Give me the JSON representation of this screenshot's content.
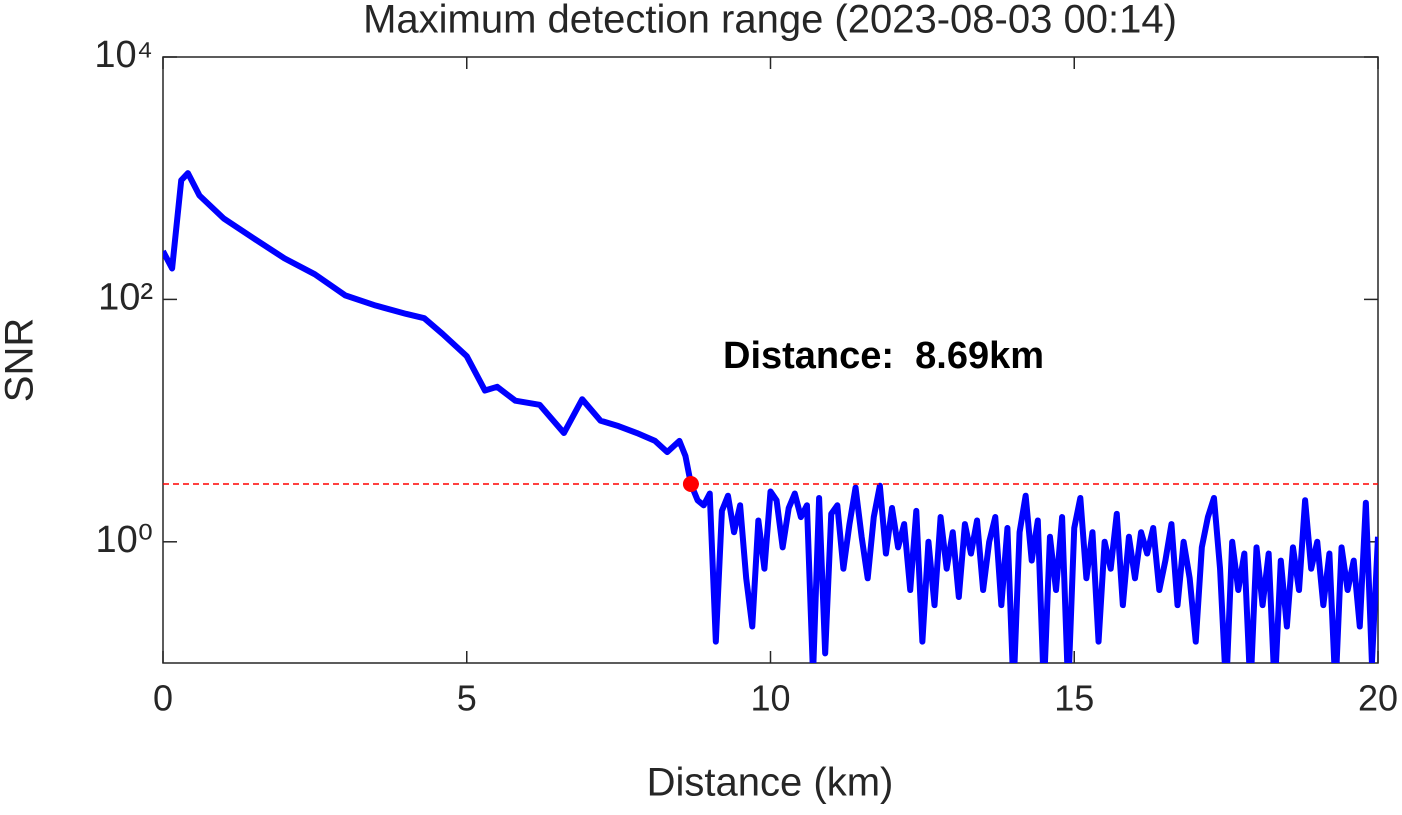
{
  "chart_data": {
    "type": "line",
    "title": "Maximum detection range (2023-08-03 00:14)",
    "x_label": "Distance (km)",
    "y_label": "SNR",
    "xlim": [
      0,
      20
    ],
    "xticks": [
      0,
      5,
      10,
      15,
      20
    ],
    "ylim": [
      0.1,
      10000
    ],
    "y_scale": "log",
    "yticks": [
      {
        "value": 1,
        "label": "10⁰"
      },
      {
        "value": 100,
        "label": "10²"
      },
      {
        "value": 10000,
        "label": "10⁴"
      }
    ],
    "x": [
      0,
      0.15,
      0.3,
      0.41,
      0.6,
      1,
      1.5,
      2,
      2.5,
      3,
      3.5,
      4,
      4.3,
      4.6,
      5,
      5.3,
      5.5,
      5.8,
      6.2,
      6.6,
      6.9,
      7.2,
      7.5,
      7.8,
      8.1,
      8.3,
      8.5,
      8.6,
      8.69,
      8.8,
      8.9,
      9.0,
      9.1,
      9.2,
      9.3,
      9.4,
      9.5,
      9.6,
      9.7,
      9.8,
      9.9,
      10.0,
      10.1,
      10.2,
      10.3,
      10.4,
      10.5,
      10.6,
      10.7,
      10.8,
      10.9,
      11.0,
      11.1,
      11.2,
      11.3,
      11.4,
      11.5,
      11.6,
      11.7,
      11.8,
      11.9,
      12.0,
      12.1,
      12.2,
      12.3,
      12.4,
      12.5,
      12.6,
      12.7,
      12.8,
      12.9,
      13.0,
      13.1,
      13.2,
      13.3,
      13.4,
      13.5,
      13.6,
      13.7,
      13.8,
      13.9,
      14.0,
      14.1,
      14.2,
      14.3,
      14.4,
      14.5,
      14.6,
      14.7,
      14.8,
      14.9,
      15.0,
      15.1,
      15.2,
      15.3,
      15.4,
      15.5,
      15.6,
      15.7,
      15.8,
      15.9,
      16.0,
      16.1,
      16.2,
      16.3,
      16.4,
      16.5,
      16.6,
      16.7,
      16.8,
      16.9,
      17.0,
      17.1,
      17.2,
      17.3,
      17.4,
      17.5,
      17.6,
      17.7,
      17.8,
      17.9,
      18.0,
      18.1,
      18.2,
      18.3,
      18.4,
      18.5,
      18.6,
      18.7,
      18.8,
      18.9,
      19.0,
      19.1,
      19.2,
      19.3,
      19.4,
      19.5,
      19.6,
      19.7,
      19.8,
      19.9,
      20.0
    ],
    "series": [
      {
        "color": "#0000ff",
        "values": [
          250,
          180,
          960,
          1100,
          720,
          465,
          317,
          218,
          161,
          108,
          89,
          76,
          70,
          52,
          34,
          17.7,
          19,
          14.6,
          13.5,
          7.9,
          15,
          10,
          9,
          7.9,
          6.8,
          5.5,
          6.8,
          5.1,
          3,
          2.2,
          2.0,
          2.5,
          0.15,
          1.8,
          2.4,
          1.2,
          2.0,
          0.5,
          0.2,
          1.5,
          0.6,
          2.6,
          2.2,
          0.9,
          1.9,
          2.5,
          1.6,
          2.0,
          0.08,
          2.3,
          0.12,
          1.7,
          2.0,
          0.6,
          1.4,
          2.8,
          1.1,
          0.5,
          1.6,
          2.9,
          0.8,
          1.9,
          0.9,
          1.4,
          0.4,
          1.8,
          0.15,
          1.0,
          0.3,
          1.6,
          0.6,
          1.2,
          0.35,
          1.4,
          0.8,
          1.5,
          0.4,
          1.0,
          1.6,
          0.3,
          1.3,
          0.06,
          1.2,
          2.4,
          0.7,
          1.5,
          0.06,
          1.1,
          0.4,
          1.6,
          0.06,
          1.3,
          2.3,
          0.5,
          1.2,
          0.15,
          1.0,
          0.6,
          1.7,
          0.3,
          1.1,
          0.5,
          1.2,
          0.8,
          1.3,
          0.4,
          0.7,
          1.4,
          0.3,
          1.0,
          0.5,
          0.15,
          0.9,
          1.6,
          2.3,
          0.6,
          0.06,
          1.0,
          0.4,
          0.8,
          0.06,
          0.9,
          0.3,
          0.8,
          0.06,
          0.7,
          0.2,
          0.9,
          0.4,
          2.2,
          0.6,
          1.0,
          0.3,
          0.8,
          0.06,
          0.9,
          0.4,
          0.7,
          0.2,
          2.1,
          0.1,
          1.1
        ]
      }
    ],
    "threshold": {
      "value": 3,
      "color": "#ff0000"
    },
    "marker": {
      "x": 8.69,
      "y": 3,
      "color": "#ff0000"
    },
    "annotation": "Distance:  8.69km"
  }
}
